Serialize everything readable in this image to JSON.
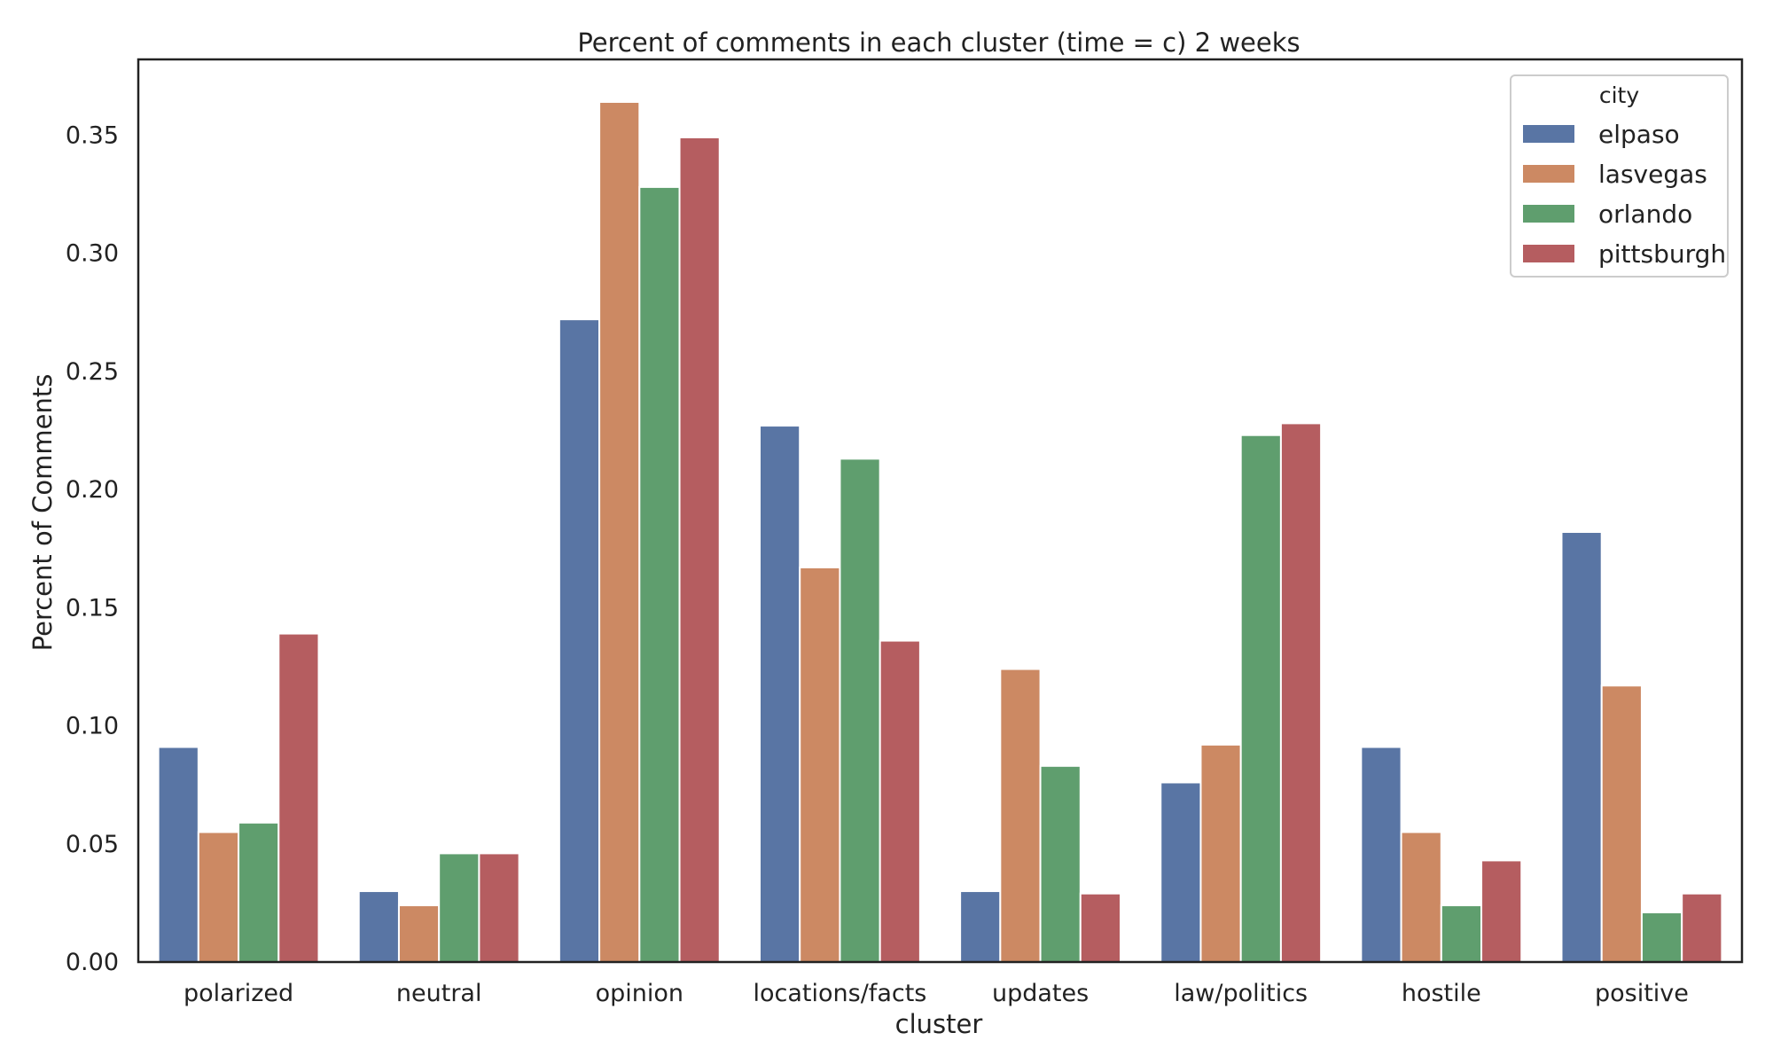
{
  "chart_data": {
    "type": "bar",
    "title": "Percent of comments in each cluster (time = c) 2 weeks",
    "xlabel": "cluster",
    "ylabel": "Percent of Comments",
    "categories": [
      "polarized",
      "neutral",
      "opinion",
      "locations/facts",
      "updates",
      "law/politics",
      "hostile",
      "positive"
    ],
    "series": [
      {
        "name": "elpaso",
        "color": "#5975a4",
        "values": [
          0.091,
          0.03,
          0.272,
          0.227,
          0.03,
          0.076,
          0.091,
          0.182
        ]
      },
      {
        "name": "lasvegas",
        "color": "#cc8963",
        "values": [
          0.055,
          0.024,
          0.364,
          0.167,
          0.124,
          0.092,
          0.055,
          0.117
        ]
      },
      {
        "name": "orlando",
        "color": "#5f9e6e",
        "values": [
          0.059,
          0.046,
          0.328,
          0.213,
          0.083,
          0.223,
          0.024,
          0.021
        ]
      },
      {
        "name": "pittsburgh",
        "color": "#b55d60",
        "values": [
          0.139,
          0.046,
          0.349,
          0.136,
          0.029,
          0.228,
          0.043,
          0.029
        ]
      }
    ],
    "yticks": [
      "0.00",
      "0.05",
      "0.10",
      "0.15",
      "0.20",
      "0.25",
      "0.30",
      "0.35"
    ],
    "ylim": [
      0,
      0.382
    ],
    "legend": {
      "title": "city",
      "position": "top-right"
    },
    "grid": false
  }
}
